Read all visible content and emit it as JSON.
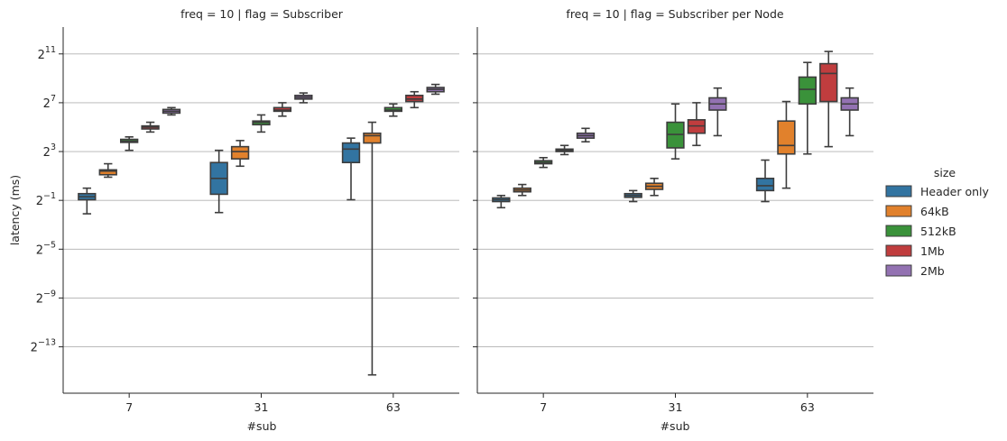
{
  "chart_data": [
    {
      "type": "box",
      "title": "freq = 10 | flag = Subscriber",
      "xlabel": "#sub",
      "ylabel": "latency (ms)",
      "yscale": "log2",
      "ylim_exp": [
        -16.8,
        13.2
      ],
      "yticks_exp": [
        11,
        7,
        3,
        -1,
        -5,
        -9,
        -13
      ],
      "categories": [
        "7",
        "31",
        "63"
      ],
      "series": [
        {
          "name": "Header only",
          "boxes": [
            {
              "cat": "7",
              "whislo": -2.1,
              "q1": -0.95,
              "med": -0.7,
              "q3": -0.45,
              "whishi": 0.0
            },
            {
              "cat": "31",
              "whislo": -2.0,
              "q1": -0.5,
              "med": 0.8,
              "q3": 2.1,
              "whishi": 3.1
            },
            {
              "cat": "63",
              "whislo": -0.95,
              "q1": 2.1,
              "med": 3.2,
              "q3": 3.7,
              "whishi": 4.1
            }
          ]
        },
        {
          "name": "64kB",
          "boxes": [
            {
              "cat": "7",
              "whislo": 0.9,
              "q1": 1.1,
              "med": 1.4,
              "q3": 1.5,
              "whishi": 2.0
            },
            {
              "cat": "31",
              "whislo": 1.8,
              "q1": 2.4,
              "med": 3.0,
              "q3": 3.4,
              "whishi": 3.9
            },
            {
              "cat": "63",
              "whislo": -15.3,
              "q1": 3.7,
              "med": 4.3,
              "q3": 4.5,
              "whishi": 5.4
            }
          ]
        },
        {
          "name": "512kB",
          "boxes": [
            {
              "cat": "7",
              "whislo": 3.1,
              "q1": 3.75,
              "med": 3.85,
              "q3": 4.0,
              "whishi": 4.2
            },
            {
              "cat": "31",
              "whislo": 4.6,
              "q1": 5.2,
              "med": 5.4,
              "q3": 5.5,
              "whishi": 6.0
            },
            {
              "cat": "63",
              "whislo": 5.9,
              "q1": 6.3,
              "med": 6.4,
              "q3": 6.6,
              "whishi": 6.9
            }
          ]
        },
        {
          "name": "1Mb",
          "boxes": [
            {
              "cat": "7",
              "whislo": 4.6,
              "q1": 4.85,
              "med": 5.0,
              "q3": 5.1,
              "whishi": 5.4
            },
            {
              "cat": "31",
              "whislo": 5.9,
              "q1": 6.3,
              "med": 6.4,
              "q3": 6.6,
              "whishi": 7.0
            },
            {
              "cat": "63",
              "whislo": 6.6,
              "q1": 7.1,
              "med": 7.3,
              "q3": 7.6,
              "whishi": 7.9
            }
          ]
        },
        {
          "name": "2Mb",
          "boxes": [
            {
              "cat": "7",
              "whislo": 6.0,
              "q1": 6.15,
              "med": 6.3,
              "q3": 6.45,
              "whishi": 6.6
            },
            {
              "cat": "31",
              "whislo": 7.0,
              "q1": 7.3,
              "med": 7.45,
              "q3": 7.6,
              "whishi": 7.8
            },
            {
              "cat": "63",
              "whislo": 7.7,
              "q1": 7.9,
              "med": 8.1,
              "q3": 8.25,
              "whishi": 8.5
            }
          ]
        }
      ]
    },
    {
      "type": "box",
      "title": "freq = 10 | flag = Subscriber per Node",
      "xlabel": "#sub",
      "ylabel": "",
      "yscale": "log2",
      "ylim_exp": [
        -16.8,
        13.2
      ],
      "yticks_exp": [
        11,
        7,
        3,
        -1,
        -5,
        -9,
        -13
      ],
      "categories": [
        "7",
        "31",
        "63"
      ],
      "series": [
        {
          "name": "Header only",
          "boxes": [
            {
              "cat": "7",
              "whislo": -1.6,
              "q1": -1.1,
              "med": -0.95,
              "q3": -0.8,
              "whishi": -0.6
            },
            {
              "cat": "31",
              "whislo": -1.1,
              "q1": -0.75,
              "med": -0.6,
              "q3": -0.45,
              "whishi": -0.2
            },
            {
              "cat": "63",
              "whislo": -1.1,
              "q1": -0.2,
              "med": 0.2,
              "q3": 0.8,
              "whishi": 2.3
            }
          ]
        },
        {
          "name": "64kB",
          "boxes": [
            {
              "cat": "7",
              "whislo": -0.6,
              "q1": -0.3,
              "med": -0.15,
              "q3": 0.0,
              "whishi": 0.3
            },
            {
              "cat": "31",
              "whislo": -0.6,
              "q1": -0.1,
              "med": 0.15,
              "q3": 0.4,
              "whishi": 0.8
            },
            {
              "cat": "63",
              "whislo": 0.0,
              "q1": 2.8,
              "med": 3.5,
              "q3": 5.5,
              "whishi": 7.1
            }
          ]
        },
        {
          "name": "512kB",
          "boxes": [
            {
              "cat": "7",
              "whislo": 1.7,
              "q1": 2.0,
              "med": 2.1,
              "q3": 2.25,
              "whishi": 2.5
            },
            {
              "cat": "31",
              "whislo": 2.4,
              "q1": 3.3,
              "med": 4.4,
              "q3": 5.4,
              "whishi": 6.9
            },
            {
              "cat": "63",
              "whislo": 2.8,
              "q1": 6.9,
              "med": 8.1,
              "q3": 9.1,
              "whishi": 10.3
            }
          ]
        },
        {
          "name": "1Mb",
          "boxes": [
            {
              "cat": "7",
              "whislo": 2.75,
              "q1": 3.0,
              "med": 3.1,
              "q3": 3.2,
              "whishi": 3.5
            },
            {
              "cat": "31",
              "whislo": 3.5,
              "q1": 4.5,
              "med": 5.1,
              "q3": 5.6,
              "whishi": 7.0
            },
            {
              "cat": "63",
              "whislo": 3.4,
              "q1": 7.1,
              "med": 9.4,
              "q3": 10.2,
              "whishi": 11.2
            }
          ]
        },
        {
          "name": "2Mb",
          "boxes": [
            {
              "cat": "7",
              "whislo": 3.8,
              "q1": 4.1,
              "med": 4.3,
              "q3": 4.5,
              "whishi": 4.9
            },
            {
              "cat": "31",
              "whislo": 4.3,
              "q1": 6.4,
              "med": 6.9,
              "q3": 7.4,
              "whishi": 8.2
            },
            {
              "cat": "63",
              "whislo": 4.3,
              "q1": 6.4,
              "med": 6.9,
              "q3": 7.4,
              "whishi": 8.2
            }
          ]
        }
      ]
    }
  ],
  "legend": {
    "title": "size",
    "entries": [
      "Header only",
      "64kB",
      "512kB",
      "1Mb",
      "2Mb"
    ]
  },
  "colors": {
    "Header only": "#3274a1",
    "64kB": "#e1812c",
    "512kB": "#3a923a",
    "1Mb": "#c03d3e",
    "2Mb": "#9372b2",
    "box_line": "#3d3d3d",
    "grid": "#b0b0b0",
    "axis": "#262626"
  }
}
